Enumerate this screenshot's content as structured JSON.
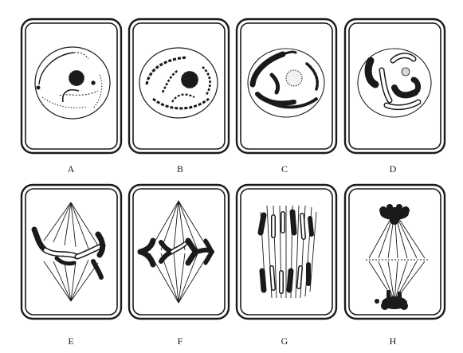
{
  "panels": [
    {
      "label": "A"
    },
    {
      "label": "B"
    },
    {
      "label": "C"
    },
    {
      "label": "D"
    },
    {
      "label": "E"
    },
    {
      "label": "F"
    },
    {
      "label": "G"
    },
    {
      "label": "H"
    }
  ],
  "colors": {
    "ink": "#1a1a1a",
    "paper": "#ffffff",
    "light_chromatid": "#e6e6e6"
  }
}
